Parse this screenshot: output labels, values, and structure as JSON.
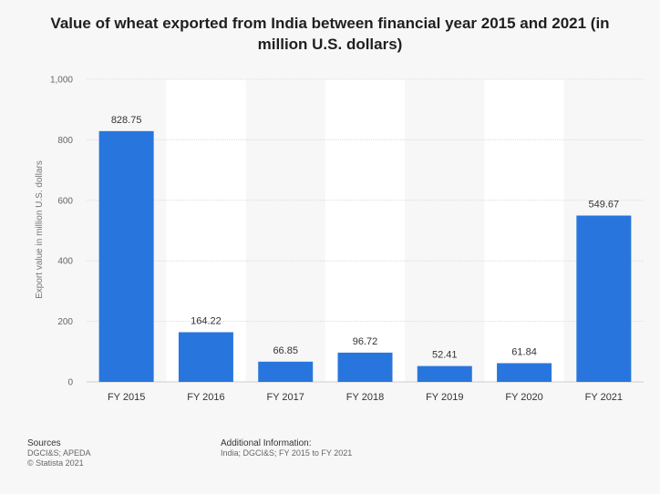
{
  "chart_data": {
    "type": "bar",
    "title": "Value of wheat exported from India between financial year 2015 and 2021 (in million U.S. dollars)",
    "xlabel": "",
    "ylabel": "Export value in million U.S. dollars",
    "categories": [
      "FY 2015",
      "FY 2016",
      "FY 2017",
      "FY 2018",
      "FY 2019",
      "FY 2020",
      "FY 2021"
    ],
    "values": [
      828.75,
      164.22,
      66.85,
      96.72,
      52.41,
      61.84,
      549.67
    ],
    "value_labels": [
      "828.75",
      "164.22",
      "66.85",
      "96.72",
      "52.41",
      "61.84",
      "549.67"
    ],
    "ylim": [
      0,
      1000
    ],
    "yticks": [
      0,
      200,
      400,
      600,
      800,
      1000
    ],
    "ytick_labels": [
      "0",
      "200",
      "400",
      "600",
      "800",
      "1,000"
    ],
    "grid": true,
    "bar_color": "#2876dd"
  },
  "footer": {
    "sources_heading": "Sources",
    "sources_text": "DGCI&S; APEDA",
    "copyright": "© Statista 2021",
    "additional_heading": "Additional Information:",
    "additional_text": "India; DGCI&S; FY 2015 to FY 2021"
  }
}
